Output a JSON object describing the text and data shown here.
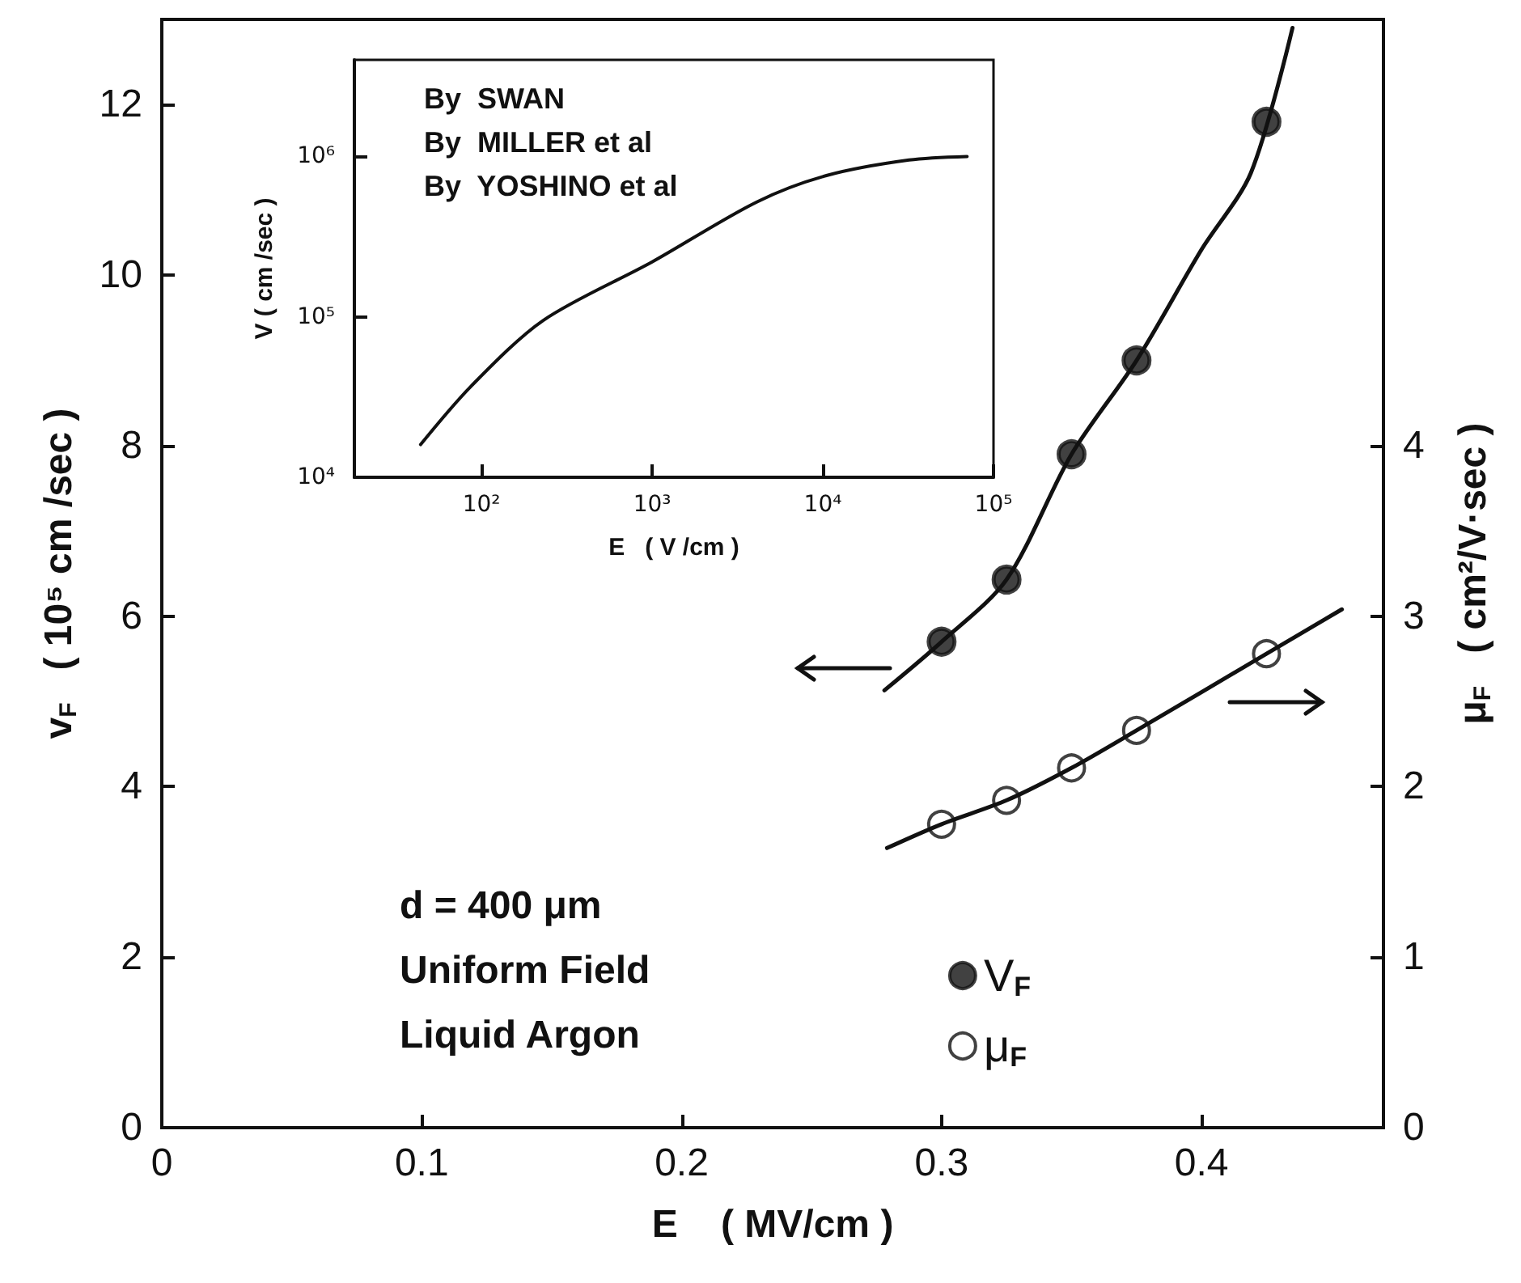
{
  "chart_data": [
    {
      "type": "scatter",
      "xlabel": "E    ( MV/cm )",
      "ylabel": "v$_{F}$   ( 10⁵ cm /sec )",
      "y2label": "μ$_{F}$   ( cm²/V·sec )",
      "xlim": [
        0,
        0.47
      ],
      "xticks": [
        0,
        0.1,
        0.2,
        0.3,
        0.4
      ],
      "ylim": [
        0,
        13
      ],
      "yticks": [
        0,
        2,
        4,
        6,
        8,
        10,
        12
      ],
      "y2lim": [
        0,
        6.5
      ],
      "y2ticks": [
        0,
        1,
        2,
        3,
        4
      ],
      "legend": "bottom right",
      "marker": "circle",
      "annotations": [
        "d = 400 μm",
        "Uniform Field",
        "Liquid Argon"
      ],
      "series": [
        {
          "name": "V$_{F}$",
          "color": "#111111",
          "x": [
            0.3,
            0.325,
            0.35,
            0.375,
            0.425
          ],
          "values": [
            5.7,
            6.43,
            7.9,
            9.0,
            11.8
          ]
        },
        {
          "name": "μ$_{F}$",
          "axis": "y2",
          "color": "#111111",
          "x": [
            0.3,
            0.325,
            0.35,
            0.375,
            0.425
          ],
          "values": [
            1.78,
            1.92,
            2.11,
            2.33,
            2.78
          ]
        },
        {
          "type": "line",
          "marker": "none",
          "color": "#111111",
          "x": [
            0.278,
            0.3,
            0.325,
            0.35,
            0.375,
            0.4,
            0.419,
            0.435
          ],
          "values": [
            5.13,
            5.7,
            6.43,
            7.9,
            9.0,
            10.3,
            11.2,
            12.9
          ]
        },
        {
          "type": "line",
          "marker": "none",
          "axis": "y2",
          "color": "#111111",
          "x": [
            0.279,
            0.3,
            0.325,
            0.35,
            0.375,
            0.425,
            0.454
          ],
          "values": [
            1.64,
            1.78,
            1.92,
            2.11,
            2.33,
            2.78,
            3.04
          ]
        }
      ]
    },
    {
      "type": "line",
      "xlabel": "E   ( V /cm )",
      "ylabel": "V ( cm /sec )",
      "log": "xy",
      "marker": "none",
      "xlim": [
        18,
        100000
      ],
      "xticks": [
        {
          "value": 100,
          "label": "10²"
        },
        {
          "value": 1000,
          "label": "10³"
        },
        {
          "value": 10000,
          "label": "10⁴"
        },
        {
          "value": 100000,
          "label": "10⁵"
        }
      ],
      "ylim": [
        10000,
        4000000
      ],
      "yticks": [
        {
          "value": 10000,
          "label": "10⁴"
        },
        {
          "value": 100000,
          "label": "10⁵"
        },
        {
          "value": 1000000,
          "label": "10⁶"
        }
      ],
      "annotations": [
        "By  SWAN",
        "By  MILLER et al",
        "By  YOSHINO et al"
      ],
      "series": [
        {
          "color": "#111111",
          "x": [
            44,
            87,
            230,
            1000,
            4100,
            10500,
            32000,
            70000
          ],
          "values": [
            16000,
            37000,
            95000,
            220000,
            520000,
            760000,
            950000,
            1000000
          ]
        }
      ]
    }
  ]
}
